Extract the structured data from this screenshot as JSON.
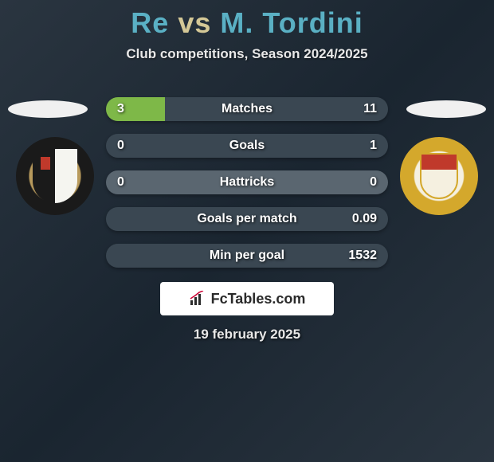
{
  "title": {
    "left": "Re",
    "vs": "vs",
    "right": "M. Tordini"
  },
  "subtitle": "Club competitions, Season 2024/2025",
  "colors": {
    "left_fill": "#7eb848",
    "right_fill": "#3a4752",
    "mid_fill": "#5a6670",
    "title_players": "#5ab0c4",
    "title_vs": "#d4c896"
  },
  "bars": [
    {
      "label": "Matches",
      "left": "3",
      "right": "11",
      "left_pct": 21,
      "right_pct": 79
    },
    {
      "label": "Goals",
      "left": "0",
      "right": "1",
      "left_pct": 0,
      "right_pct": 100
    },
    {
      "label": "Hattricks",
      "left": "0",
      "right": "0",
      "left_pct": 50,
      "right_pct": 50,
      "neutral": true
    },
    {
      "label": "Goals per match",
      "left": "",
      "right": "0.09",
      "left_pct": 0,
      "right_pct": 100
    },
    {
      "label": "Min per goal",
      "left": "",
      "right": "1532",
      "left_pct": 0,
      "right_pct": 100
    }
  ],
  "logo": "FcTables.com",
  "date": "19 february 2025"
}
